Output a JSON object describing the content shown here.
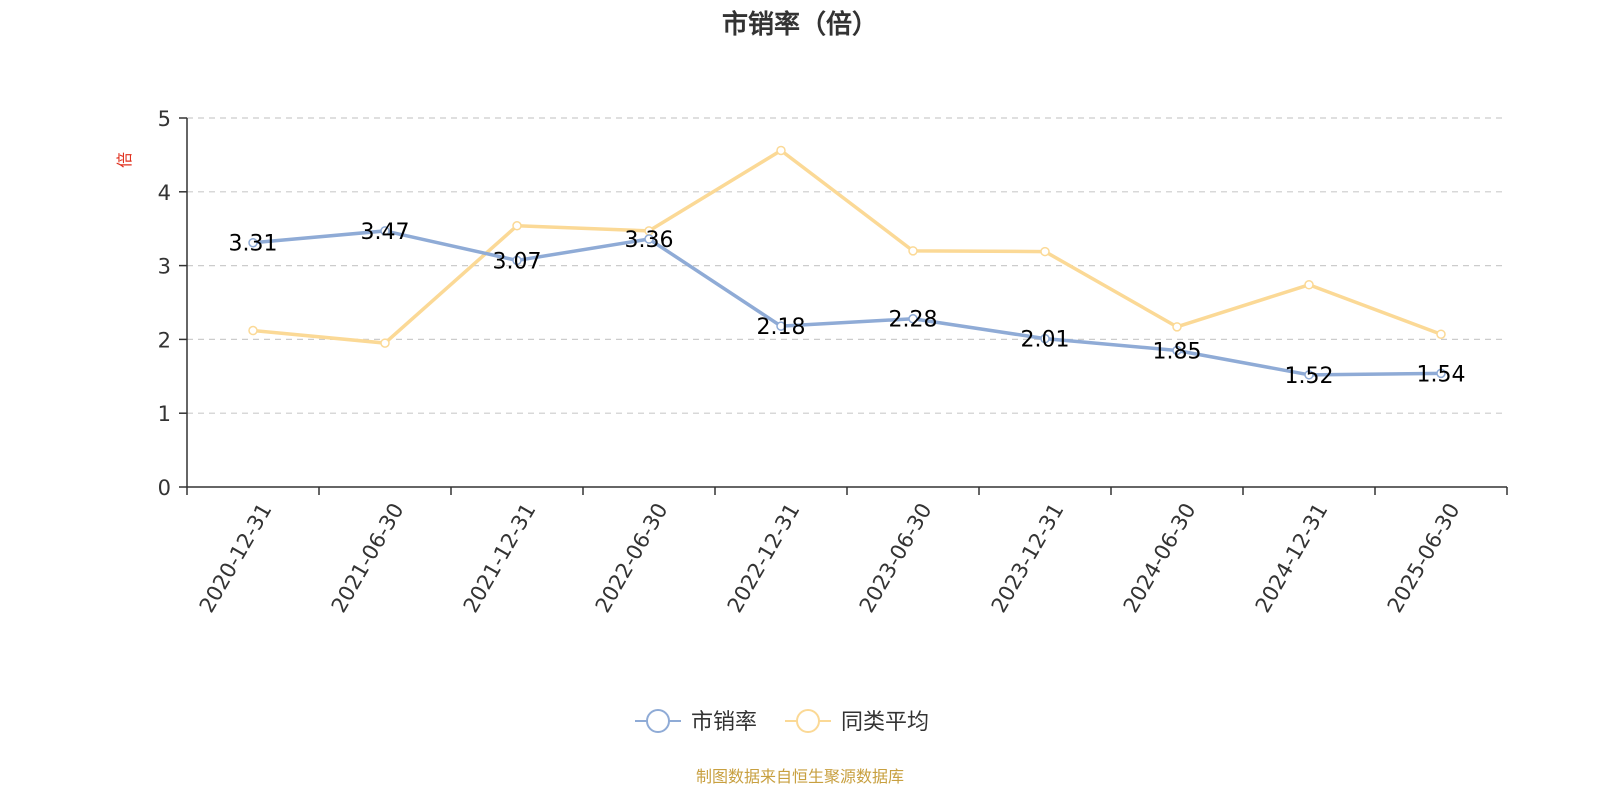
{
  "chart_data": {
    "type": "line",
    "title": "市销率（倍）",
    "ylabel": "倍",
    "ylim": [
      0,
      5
    ],
    "yticks": [
      0,
      1,
      2,
      3,
      4,
      5
    ],
    "grid": true,
    "legend_position": "bottom",
    "categories": [
      "2020-12-31",
      "2021-06-30",
      "2021-12-31",
      "2022-06-30",
      "2022-12-31",
      "2023-06-30",
      "2023-12-31",
      "2024-06-30",
      "2024-12-31",
      "2025-06-30"
    ],
    "series": [
      {
        "name": "市销率",
        "color": "#8fabd6",
        "values": [
          3.31,
          3.47,
          3.07,
          3.36,
          2.18,
          2.28,
          2.01,
          1.85,
          1.52,
          1.54
        ],
        "labels": [
          "3.31",
          "3.47",
          "3.07",
          "3.36",
          "2.18",
          "2.28",
          "2.01",
          "1.85",
          "1.52",
          "1.54"
        ]
      },
      {
        "name": "同类平均",
        "color": "#fbd996",
        "values": [
          2.12,
          1.95,
          3.54,
          3.47,
          4.56,
          3.2,
          3.19,
          2.17,
          2.74,
          2.07
        ]
      }
    ],
    "source": "制图数据来自恒生聚源数据库"
  },
  "colors": {
    "axis": "#333333",
    "grid": "#cccccc",
    "unit": "#e0301e",
    "source": "#c8a040"
  }
}
